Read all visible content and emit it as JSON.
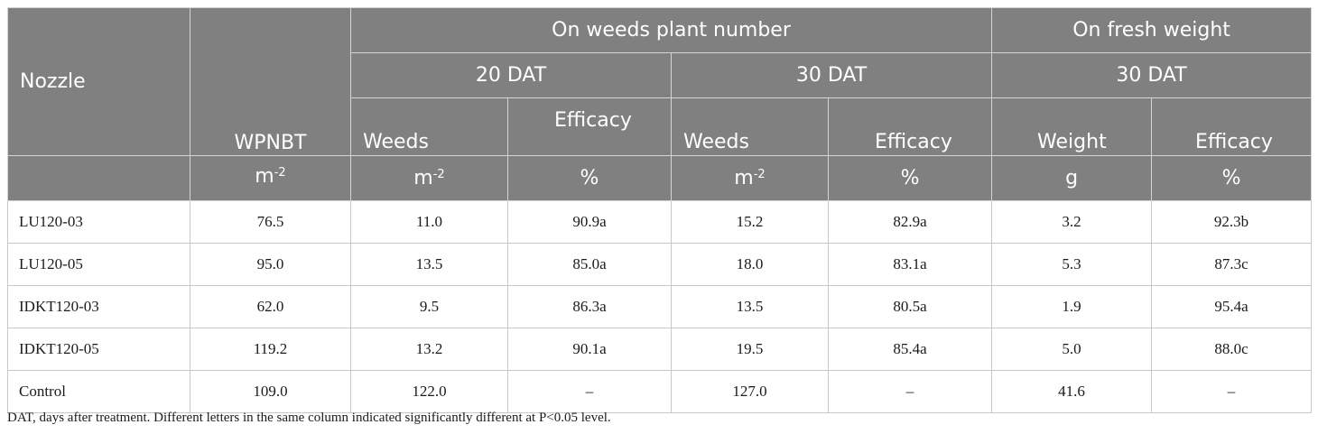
{
  "header": {
    "nozzle": "Nozzle",
    "group_plant": "On weeds plant number",
    "group_fresh": "On fresh weight",
    "dat20": "20 DAT",
    "dat30a": "30 DAT",
    "dat30b": "30 DAT",
    "wpnbt": "WPNBT",
    "weeds1": "Weeds",
    "efficacy1": "Efficacy",
    "weeds2": "Weeds",
    "efficacy2": "Efficacy",
    "weight": "Weight",
    "efficacy3": "Efficacy",
    "unit_m": "m",
    "unit_exp": "-2",
    "unit_pct": "%",
    "unit_g": "g"
  },
  "rows": [
    {
      "nozzle": "LU120-03",
      "wpnbt": "76.5",
      "w20": "11.0",
      "e20": "90.9a",
      "w30": "15.2",
      "e30": "82.9a",
      "weight": "3.2",
      "ew": "92.3b"
    },
    {
      "nozzle": "LU120-05",
      "wpnbt": "95.0",
      "w20": "13.5",
      "e20": "85.0a",
      "w30": "18.0",
      "e30": "83.1a",
      "weight": "5.3",
      "ew": "87.3c"
    },
    {
      "nozzle": "IDKT120-03",
      "wpnbt": "62.0",
      "w20": "9.5",
      "e20": "86.3a",
      "w30": "13.5",
      "e30": "80.5a",
      "weight": "1.9",
      "ew": "95.4a"
    },
    {
      "nozzle": "IDKT120-05",
      "wpnbt": "119.2",
      "w20": "13.2",
      "e20": "90.1a",
      "w30": "19.5",
      "e30": "85.4a",
      "weight": "5.0",
      "ew": "88.0c"
    },
    {
      "nozzle": "Control",
      "wpnbt": "109.0",
      "w20": "122.0",
      "e20": "–",
      "w30": "127.0",
      "e30": "–",
      "weight": "41.6",
      "ew": "–"
    }
  ],
  "footnote": "DAT, days after treatment. Different letters in the same column indicated significantly different at P<0.05 level."
}
